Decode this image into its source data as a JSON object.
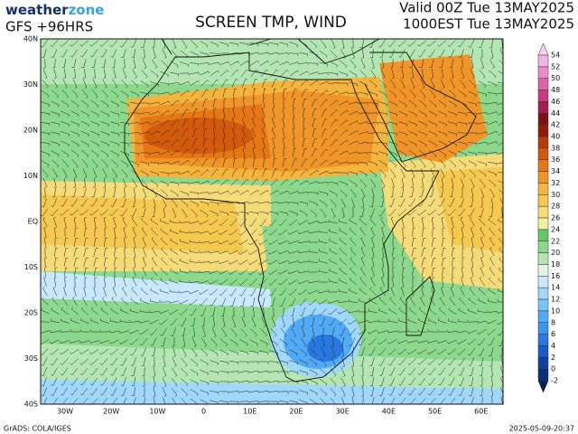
{
  "header": {
    "logo_a": "weather",
    "logo_b": "zone",
    "model": "GFS +96HRS",
    "title": "SCREEN TMP, WIND",
    "valid": "Valid 00Z Tue 13MAY2025",
    "local": "1000EST Tue 13MAY2025"
  },
  "map": {
    "lat_labels": [
      "40N",
      "30N",
      "20N",
      "10N",
      "EQ",
      "10S",
      "20S",
      "30S",
      "40S"
    ],
    "lon_labels": [
      "30W",
      "20W",
      "10W",
      "0",
      "10E",
      "20E",
      "30E",
      "40E",
      "50E",
      "60E"
    ]
  },
  "colorbar": {
    "levels": [
      54,
      52,
      50,
      48,
      46,
      44,
      42,
      40,
      38,
      36,
      34,
      32,
      30,
      28,
      26,
      24,
      22,
      20,
      18,
      16,
      14,
      12,
      10,
      8,
      6,
      4,
      2,
      0,
      -2
    ],
    "colors": [
      "#fad2f0",
      "#f5b4e1",
      "#eb8cc8",
      "#dc64aa",
      "#c83c82",
      "#a01e50",
      "#781414",
      "#8c1e0a",
      "#b43c0a",
      "#d25a0a",
      "#e67814",
      "#f09628",
      "#f5b43c",
      "#f5c850",
      "#f5dc78",
      "#f5f0a0",
      "#64c864",
      "#8cd88c",
      "#b4e6b4",
      "#e6f4e6",
      "#c8e8fd",
      "#a0d7fc",
      "#78c3fa",
      "#50aaf5",
      "#3c96f0",
      "#2878e0",
      "#1a5ac8",
      "#1040a0",
      "#0a2e7a"
    ]
  },
  "footer": {
    "credit": "GrADS: COLA/IGES",
    "timestamp": "2025-05-09-20:37"
  }
}
